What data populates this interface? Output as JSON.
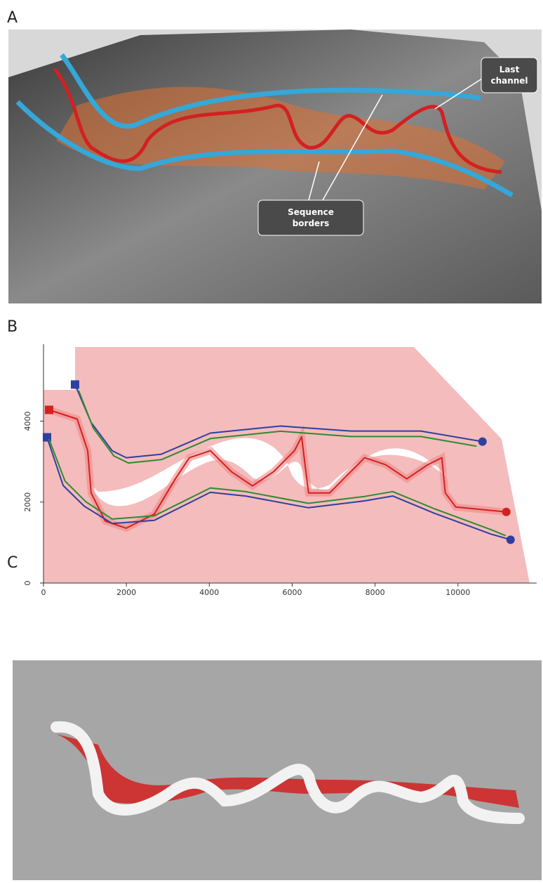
{
  "panels": [
    {
      "label": "A",
      "annotations": [
        "Last channel",
        "Sequence borders"
      ]
    },
    {
      "label": "B",
      "chart_data": {
        "type": "line",
        "xlim": [
          0,
          11900
        ],
        "ylim": [
          0,
          5900
        ],
        "xticks": [
          0,
          2000,
          4000,
          6000,
          8000,
          10000
        ],
        "yticks": [
          0,
          2000,
          4000
        ],
        "series": [
          {
            "color": "#d42020",
            "marker": "square-start circle-end",
            "x": [
              135,
              812,
              1066,
              1150,
              1489,
              1997,
              2673,
              3181,
              3519,
              4027,
              4535,
              5042,
              5550,
              6057,
              6227,
              6311,
              6396,
              6904,
              7411,
              7750,
              8257,
              8765,
              9272,
              9611,
              9695,
              9949,
              11167
            ],
            "values": [
              4278,
              4052,
              3269,
              2226,
              1530,
              1356,
              1704,
              2574,
              3095,
              3269,
              2748,
              2400,
              2748,
              3269,
              3617,
              2922,
              2226,
              2226,
              2748,
              3095,
              2922,
              2574,
              2922,
              3095,
              2226,
              1878,
              1756
            ]
          },
          {
            "color": "#2f3f9f",
            "marker": "square-start circle-end",
            "x": [
              761,
              1150,
              1658,
              1997,
              2843,
              4027,
              5719,
              7411,
              9103,
              10592
            ],
            "values": [
              4904,
              3965,
              3269,
              3095,
              3182,
              3704,
              3878,
              3756,
              3756,
              3495
            ]
          },
          {
            "color": "#2f8a2f",
            "x": [
              850,
              1200,
              1700,
              2050,
              2850,
              4027,
              5719,
              7411,
              9103,
              10450
            ],
            "values": [
              4750,
              3830,
              3140,
              2965,
              3050,
              3570,
              3750,
              3620,
              3620,
              3380
            ]
          },
          {
            "color": "#2f3f9f",
            "marker": "square-start circle-end",
            "x": [
              85,
              474,
              981,
              1658,
              2673,
              4027,
              4873,
              6396,
              7750,
              8427,
              9442,
              10796,
              11270
            ],
            "values": [
              3600,
              2410,
              1900,
              1470,
              1550,
              2240,
              2150,
              1860,
              2030,
              2150,
              1720,
              1210,
              1070
            ]
          },
          {
            "color": "#2f8a2f",
            "x": [
              130,
              520,
              1020,
              1658,
              2673,
              4027,
              4873,
              6396,
              7750,
              8427,
              9442,
              10796,
              11150
            ],
            "values": [
              3560,
              2520,
              2010,
              1580,
              1660,
              2350,
              2260,
              1970,
              2140,
              2260,
              1830,
              1320,
              1170
            ]
          }
        ]
      }
    },
    {
      "label": "C"
    }
  ]
}
